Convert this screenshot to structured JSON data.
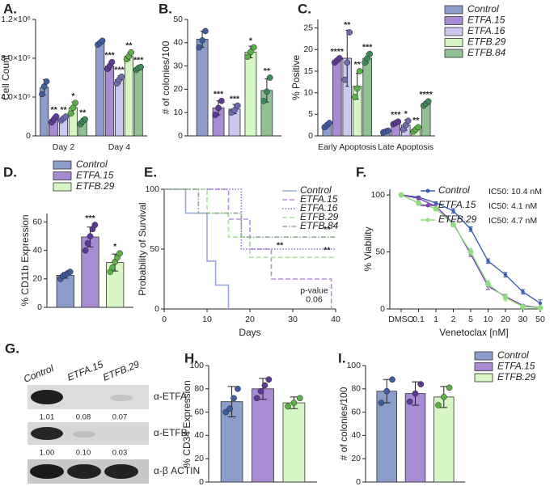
{
  "chart_data": [
    {
      "type": "bar",
      "panel": "A.",
      "ylabel": "Cell Count",
      "categories": [
        "Day 2",
        "Day 4"
      ],
      "ylim": [
        0,
        1200000
      ],
      "yticks": [
        0,
        {
          "value": 400000,
          "label": "4.0×10⁵"
        },
        {
          "value": 800000,
          "label": "8.0×10⁵"
        },
        {
          "value": 1200000,
          "label": "1.2×10⁶"
        }
      ],
      "series": [
        {
          "name": "Control",
          "color": "#8d9dcb",
          "point_color": "#3f5d9e",
          "values": [
            500000,
            960000
          ],
          "errors": [
            80000,
            20000
          ],
          "points": [
            [
              430000,
              510000,
              560000
            ],
            [
              940000,
              960000,
              980000
            ]
          ],
          "annotations": [
            null,
            null
          ]
        },
        {
          "name": "ETFA.15",
          "color": "#a88bd3",
          "point_color": "#5e3a98",
          "values": [
            170000,
            720000
          ],
          "errors": [
            30000,
            40000
          ],
          "points": [
            [
              140000,
              170000,
              200000
            ],
            [
              690000,
              720000,
              760000
            ]
          ],
          "annotations": [
            "**",
            "***"
          ]
        },
        {
          "name": "ETFA.16",
          "color": "#cbc8f0",
          "point_color": "#6f6cae",
          "values": [
            180000,
            580000
          ],
          "errors": [
            20000,
            40000
          ],
          "points": [
            [
              160000,
              180000,
              200000
            ],
            [
              540000,
              580000,
              610000
            ]
          ],
          "annotations": [
            "**",
            "***"
          ]
        },
        {
          "name": "ETFB.29",
          "color": "#d6f6c3",
          "point_color": "#5bb048",
          "values": [
            290000,
            820000
          ],
          "errors": [
            60000,
            40000
          ],
          "points": [
            [
              230000,
              290000,
              340000
            ],
            [
              790000,
              820000,
              860000
            ]
          ],
          "annotations": [
            "*",
            "**"
          ]
        },
        {
          "name": "ETFB.84",
          "color": "#90c093",
          "point_color": "#3c8a5a",
          "values": [
            150000,
            700000
          ],
          "errors": [
            30000,
            20000
          ],
          "points": [
            [
              120000,
              150000,
              170000
            ],
            [
              680000,
              700000,
              710000
            ]
          ],
          "annotations": [
            "**",
            "***"
          ]
        }
      ]
    },
    {
      "type": "bar",
      "panel": "B.",
      "ylabel": "# of colonies/100",
      "ylim": [
        0,
        50
      ],
      "yticks": [
        0,
        10,
        20,
        30,
        40,
        50
      ],
      "gap": true,
      "series": [
        {
          "name": "Control",
          "color": "#8d9dcb",
          "point_color": "#3f5d9e",
          "values": [
            41.5
          ],
          "errors": [
            3.5
          ],
          "points": [
            [
              38,
              41,
              45
            ]
          ],
          "annotations": [
            null
          ]
        },
        {
          "name": "ETFA.15",
          "color": "#a88bd3",
          "point_color": "#5e3a98",
          "values": [
            12
          ],
          "errors": [
            3
          ],
          "points": [
            [
              9,
              12,
              15
            ]
          ],
          "annotations": [
            "***"
          ]
        },
        {
          "name": "ETFA.16",
          "color": "#cbc8f0",
          "point_color": "#6f6cae",
          "values": [
            11.5
          ],
          "errors": [
            2
          ],
          "points": [
            [
              10,
              11,
              13
            ]
          ],
          "annotations": [
            "***"
          ]
        },
        {
          "name": "ETFB.29",
          "color": "#d6f6c3",
          "point_color": "#5bb048",
          "values": [
            36
          ],
          "errors": [
            2.5
          ],
          "points": [
            [
              34,
              36,
              38
            ]
          ],
          "annotations": [
            "*"
          ]
        },
        {
          "name": "ETFB.84",
          "color": "#90c093",
          "point_color": "#3c8a5a",
          "values": [
            19.5
          ],
          "errors": [
            5
          ],
          "points": [
            [
              15,
              19,
              25
            ]
          ],
          "annotations": [
            "**"
          ]
        }
      ]
    },
    {
      "type": "bar",
      "panel": "C.",
      "ylabel": "% Positive",
      "categories": [
        "Early Apoptosis",
        "Late Apoptosis"
      ],
      "ylim": [
        0,
        27
      ],
      "yticks": [
        0,
        5,
        10,
        15,
        20,
        25
      ],
      "legend": "right",
      "series": [
        {
          "name": "Control",
          "color": "#8d9dcb",
          "point_color": "#3f5d9e",
          "values": [
            2.5,
            1
          ],
          "errors": [
            0.5,
            0.3
          ],
          "points": [
            [
              2,
              2.5,
              3
            ],
            [
              0.8,
              1,
              1.2
            ]
          ],
          "annotations": [
            null,
            null
          ]
        },
        {
          "name": "ETFA.15",
          "color": "#a88bd3",
          "point_color": "#5e3a98",
          "values": [
            17.5,
            3
          ],
          "errors": [
            0.5,
            0.4
          ],
          "points": [
            [
              17,
              17.5,
              18
            ],
            [
              2.7,
              3,
              3.3
            ]
          ],
          "annotations": [
            "****",
            "***"
          ]
        },
        {
          "name": "ETFA.16",
          "color": "#cbc8f0",
          "point_color": "#6f6cae",
          "values": [
            18,
            2.5
          ],
          "errors": [
            6.5,
            1.2
          ],
          "points": [
            [
              13,
              17,
              24
            ],
            [
              1.5,
              2.5,
              3.5
            ]
          ],
          "annotations": [
            "**",
            "*"
          ]
        },
        {
          "name": "ETFB.29",
          "color": "#d6f6c3",
          "point_color": "#5bb048",
          "values": [
            11.5,
            1.5
          ],
          "errors": [
            3,
            0.5
          ],
          "points": [
            [
              9,
              11,
              15
            ],
            [
              1,
              1.5,
              2
            ]
          ],
          "annotations": [
            "**",
            "**"
          ]
        },
        {
          "name": "ETFB.84",
          "color": "#90c093",
          "point_color": "#3c8a5a",
          "values": [
            18,
            7.5
          ],
          "errors": [
            1,
            0.5
          ],
          "points": [
            [
              17,
              18,
              19
            ],
            [
              7,
              7.5,
              8
            ]
          ],
          "annotations": [
            "***",
            "****"
          ]
        }
      ]
    },
    {
      "type": "bar",
      "panel": "D.",
      "ylabel": "% CD11b Expression",
      "ylim": [
        0,
        66
      ],
      "yticks": [
        0,
        20,
        40,
        60
      ],
      "legend": "top",
      "gap": true,
      "series": [
        {
          "name": "Control",
          "color": "#8d9dcb",
          "point_color": "#3f5d9e",
          "values": [
            22.5
          ],
          "errors": [
            2
          ],
          "points": [
            [
              20,
              22,
              23,
              24,
              25
            ]
          ],
          "annotations": [
            null
          ]
        },
        {
          "name": "ETFA.15",
          "color": "#a88bd3",
          "point_color": "#5e3a98",
          "values": [
            49.5
          ],
          "errors": [
            7
          ],
          "points": [
            [
              40,
              45,
              50,
              55,
              58
            ]
          ],
          "annotations": [
            "***"
          ]
        },
        {
          "name": "ETFB.29",
          "color": "#d6f6c3",
          "point_color": "#5bb048",
          "values": [
            31.5
          ],
          "errors": [
            6
          ],
          "points": [
            [
              25,
              28,
              32,
              35,
              38
            ]
          ],
          "annotations": [
            "*"
          ]
        }
      ]
    },
    {
      "type": "survival",
      "panel": "E.",
      "ylabel": "Probability of Survival",
      "xlabel": "Days",
      "xlim": [
        0,
        40
      ],
      "xticks": [
        0,
        10,
        20,
        30,
        40
      ],
      "ylim": [
        0,
        100
      ],
      "yticks": [
        0,
        50,
        100
      ],
      "legend": "top-right",
      "series": [
        {
          "name": "Control",
          "color": "#9aa8e2",
          "dash": "solid",
          "x": [
            0,
            5,
            5,
            10,
            10,
            12,
            12,
            15,
            15
          ],
          "values": [
            100,
            100,
            80,
            80,
            40,
            40,
            20,
            20,
            0
          ]
        },
        {
          "name": "ETFA.15",
          "color": "#b48fe0",
          "dash": "dashed",
          "x": [
            0,
            15,
            15,
            20,
            20,
            25,
            25,
            39,
            39
          ],
          "values": [
            100,
            100,
            75,
            75,
            50,
            50,
            25,
            25,
            0
          ]
        },
        {
          "name": "ETFA.16",
          "color": "#8c6fcf",
          "dash": "dotted",
          "x": [
            0,
            18,
            18,
            40
          ],
          "values": [
            100,
            100,
            50,
            50
          ]
        },
        {
          "name": "ETFB.29",
          "color": "#a8e29a",
          "dash": "dashed",
          "x": [
            0,
            10,
            10,
            15,
            15,
            20,
            20,
            40
          ],
          "values": [
            100,
            100,
            80,
            80,
            60,
            60,
            43,
            43
          ]
        },
        {
          "name": "ETFB.84",
          "color": "#8fae8f",
          "dash": "dashdot",
          "x": [
            0,
            8,
            8,
            18,
            18,
            40
          ],
          "values": [
            100,
            100,
            80,
            80,
            60,
            60
          ]
        }
      ],
      "annotations": [
        {
          "lines": [
            "**"
          ],
          "x": 27,
          "y": 53
        },
        {
          "lines": [
            "**"
          ],
          "x": 38,
          "y": 49
        },
        {
          "lines": [
            "**"
          ],
          "x": 38,
          "y": 66
        },
        {
          "lines": [
            "p-value",
            "0.06"
          ],
          "x": 35,
          "y": 15
        }
      ]
    },
    {
      "type": "line",
      "panel": "F.",
      "ylabel": "% Viability",
      "xlabel": "Venetoclax [nM]",
      "categories": [
        "DMSO",
        "0.1",
        "1",
        "2",
        "5",
        "10",
        "20",
        "30",
        "50"
      ],
      "ylim": [
        0,
        105
      ],
      "yticks": [
        0,
        50,
        100
      ],
      "legend": "top-right",
      "series": [
        {
          "name": "Control",
          "legend_note": "IC50: 10.4 nM",
          "color": "#3a5fb0",
          "values": [
            100,
            98,
            93,
            86,
            70,
            42,
            30,
            15,
            5
          ],
          "errors": [
            1,
            1,
            1,
            2,
            2,
            2,
            2,
            2,
            3
          ]
        },
        {
          "name": "ETFA.15",
          "legend_note": "IC50: 4.1 nM",
          "color": "#7a3fb5",
          "values": [
            100,
            97,
            90,
            75,
            48,
            20,
            11,
            3,
            1
          ],
          "errors": [
            1,
            1,
            2,
            2,
            2,
            3,
            2,
            1,
            1
          ]
        },
        {
          "name": "ETFB.29",
          "legend_note": "IC50: 4.7 nM",
          "color": "#8fdc7c",
          "values": [
            100,
            93,
            88,
            74,
            50,
            22,
            10,
            2,
            1
          ],
          "errors": [
            1,
            2,
            2,
            2,
            3,
            3,
            3,
            1,
            1
          ]
        }
      ]
    },
    {
      "type": "bar",
      "panel": "H.",
      "ylabel": "% CD34 Expression",
      "ylim": [
        0,
        100
      ],
      "yticks": [
        0,
        20,
        40,
        60,
        80,
        100
      ],
      "gap": true,
      "series": [
        {
          "name": "Control",
          "color": "#8d9dcb",
          "point_color": "#3f5d9e",
          "values": [
            69
          ],
          "errors": [
            13
          ],
          "points": [
            [
              60,
              63,
              72,
              80
            ]
          ],
          "annotations": [
            null
          ]
        },
        {
          "name": "ETFA.15",
          "color": "#a88bd3",
          "point_color": "#5e3a98",
          "values": [
            80
          ],
          "errors": [
            9
          ],
          "points": [
            [
              72,
              78,
              83,
              88
            ]
          ],
          "annotations": [
            null
          ]
        },
        {
          "name": "ETFB.29",
          "color": "#d6f6c3",
          "point_color": "#5bb048",
          "values": [
            68
          ],
          "errors": [
            5
          ],
          "points": [
            [
              65,
              68,
              72
            ]
          ],
          "annotations": [
            null
          ]
        }
      ]
    },
    {
      "type": "bar",
      "panel": "I.",
      "ylabel": "# of colonies/100",
      "ylim": [
        0,
        100
      ],
      "yticks": [
        0,
        20,
        40,
        60,
        80,
        100
      ],
      "legend": "right",
      "gap": true,
      "series": [
        {
          "name": "Control",
          "color": "#8d9dcb",
          "point_color": "#3f5d9e",
          "values": [
            78
          ],
          "errors": [
            10
          ],
          "points": [
            [
              68,
              78,
              88
            ]
          ],
          "annotations": [
            null
          ]
        },
        {
          "name": "ETFA.15",
          "color": "#a88bd3",
          "point_color": "#5e3a98",
          "values": [
            76
          ],
          "errors": [
            10
          ],
          "points": [
            [
              69,
              76,
              84
            ]
          ],
          "annotations": [
            null
          ]
        },
        {
          "name": "ETFB.29",
          "color": "#d6f6c3",
          "point_color": "#5bb048",
          "values": [
            73
          ],
          "errors": [
            9
          ],
          "points": [
            [
              66,
              73,
              81
            ]
          ],
          "annotations": [
            null
          ]
        }
      ]
    }
  ],
  "blot": {
    "panel": "G.",
    "lanes": [
      "Control",
      "ETFA.15",
      "ETFB.29"
    ],
    "rows": [
      {
        "label": "α-ETFA",
        "quant": [
          "1.01",
          "0.08",
          "0.07"
        ]
      },
      {
        "label": "α-ETFB",
        "quant": [
          "1.00",
          "0.10",
          "0.03"
        ]
      },
      {
        "label": "α-β ACTIN"
      }
    ]
  }
}
